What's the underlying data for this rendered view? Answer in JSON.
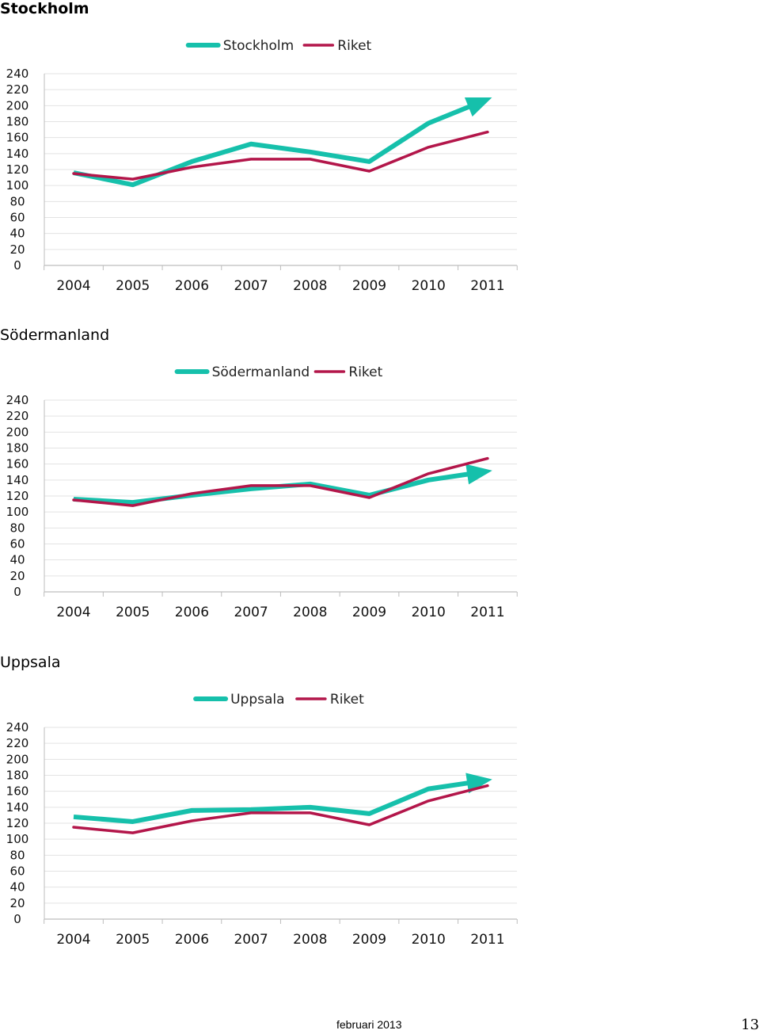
{
  "footer": {
    "date": "februari 2013",
    "page_number": "13"
  },
  "colors": {
    "region": "#16c0ab",
    "riket": "#b3164a",
    "grid": "#e3e3e3",
    "axis": "#bdbdbd"
  },
  "chart_data": [
    {
      "type": "line",
      "title": "Stockholm",
      "categories": [
        "2004",
        "2005",
        "2006",
        "2007",
        "2008",
        "2009",
        "2010",
        "2011"
      ],
      "ylim": [
        0,
        240
      ],
      "yticks": [
        "0",
        "20",
        "40",
        "60",
        "80",
        "100",
        "120",
        "140",
        "160",
        "180",
        "200",
        "220",
        "240"
      ],
      "grid": true,
      "legend": "top-center",
      "trend_arrow": true,
      "series": [
        {
          "name": "Stockholm",
          "values": [
            116,
            101,
            130,
            152,
            142,
            130,
            178,
            208
          ]
        },
        {
          "name": "Riket",
          "values": [
            115,
            108,
            123,
            133,
            133,
            118,
            148,
            167
          ]
        }
      ]
    },
    {
      "type": "line",
      "title": "Södermanland",
      "categories": [
        "2004",
        "2005",
        "2006",
        "2007",
        "2008",
        "2009",
        "2010",
        "2011"
      ],
      "ylim": [
        0,
        240
      ],
      "yticks": [
        "0",
        "20",
        "40",
        "60",
        "80",
        "100",
        "120",
        "140",
        "160",
        "180",
        "200",
        "220",
        "240"
      ],
      "grid": true,
      "legend": "top-center",
      "trend_arrow": true,
      "series": [
        {
          "name": "Södermanland",
          "values": [
            116,
            112,
            121,
            129,
            135,
            121,
            140,
            151
          ]
        },
        {
          "name": "Riket",
          "values": [
            115,
            108,
            123,
            133,
            133,
            118,
            148,
            167
          ]
        }
      ]
    },
    {
      "type": "line",
      "title": "Uppsala",
      "categories": [
        "2004",
        "2005",
        "2006",
        "2007",
        "2008",
        "2009",
        "2010",
        "2011"
      ],
      "ylim": [
        0,
        240
      ],
      "yticks": [
        "0",
        "20",
        "40",
        "60",
        "80",
        "100",
        "120",
        "140",
        "160",
        "180",
        "200",
        "220",
        "240"
      ],
      "grid": true,
      "legend": "top-center",
      "trend_arrow": true,
      "series": [
        {
          "name": "Uppsala",
          "values": [
            128,
            122,
            136,
            137,
            140,
            132,
            163,
            174
          ]
        },
        {
          "name": "Riket",
          "values": [
            115,
            108,
            123,
            133,
            133,
            118,
            148,
            167
          ]
        }
      ]
    }
  ]
}
